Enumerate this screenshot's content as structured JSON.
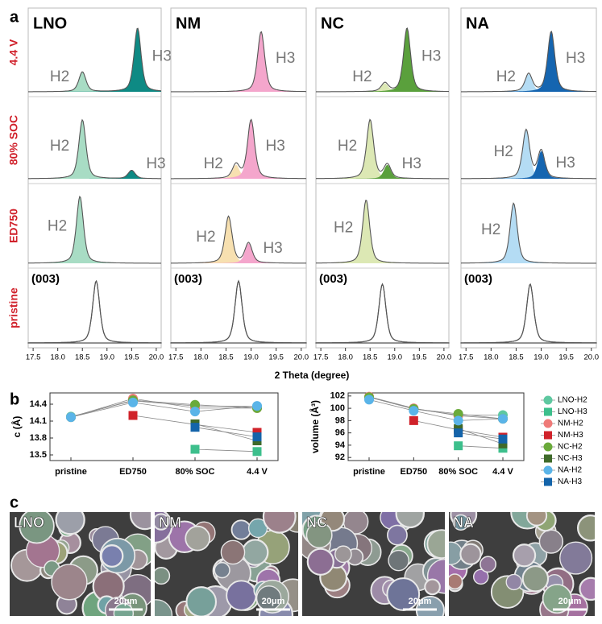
{
  "panel_labels": [
    "a",
    "b",
    "c"
  ],
  "chart_data": [
    {
      "type": "xrd",
      "xlabel": "2 Theta (degree)",
      "xlim": [
        17.4,
        20.1
      ],
      "xticks": [
        17.5,
        {
          "value": 18,
          "label": "18.0"
        },
        18.5,
        {
          "value": 19,
          "label": "19.0"
        },
        19.5,
        {
          "value": 20,
          "label": "20.0"
        }
      ],
      "rows": [
        "4.4 V",
        "80% SOC",
        "ED750",
        "pristine"
      ],
      "reflection": "(003)",
      "columns": [
        {
          "name": "LNO",
          "peaks": [
            [
              {
                "label": "H2",
                "color": "#a8dcc4",
                "center": 18.5,
                "intensity": 0.28
              },
              {
                "label": "H3",
                "color": "#0e8a84",
                "center": 19.62,
                "intensity": 0.9
              }
            ],
            [
              {
                "label": "H2",
                "color": "#a8dcc4",
                "center": 18.5,
                "intensity": 0.85
              },
              {
                "label": "H3",
                "color": "#0e8a84",
                "center": 19.5,
                "intensity": 0.12
              }
            ],
            [
              {
                "label": "H2",
                "color": "#a8dcc4",
                "center": 18.45,
                "intensity": 1.0
              }
            ],
            [
              {
                "center": 18.78,
                "intensity": 1.0
              }
            ]
          ]
        },
        {
          "name": "NM",
          "peaks": [
            [
              {
                "label": "H3",
                "color": "#f4a6cc",
                "center": 19.2,
                "intensity": 0.85
              }
            ],
            [
              {
                "label": "H2",
                "color": "#f7e0b0",
                "center": 18.7,
                "intensity": 0.2
              },
              {
                "label": "H3",
                "color": "#f4a6cc",
                "center": 19.0,
                "intensity": 0.85
              }
            ],
            [
              {
                "label": "H2",
                "color": "#f7e0b0",
                "center": 18.55,
                "intensity": 0.7
              },
              {
                "label": "H3",
                "color": "#f4a6cc",
                "center": 18.95,
                "intensity": 0.3
              }
            ],
            [
              {
                "center": 18.75,
                "intensity": 1.0
              }
            ]
          ]
        },
        {
          "name": "NC",
          "peaks": [
            [
              {
                "label": "H2",
                "color": "#dce8b4",
                "center": 18.8,
                "intensity": 0.12
              },
              {
                "label": "H3",
                "color": "#5aa03c",
                "center": 19.25,
                "intensity": 0.9
              }
            ],
            [
              {
                "label": "H2",
                "color": "#dce8b4",
                "center": 18.5,
                "intensity": 0.85
              },
              {
                "label": "H3",
                "color": "#5aa03c",
                "center": 18.85,
                "intensity": 0.2
              }
            ],
            [
              {
                "label": "H2",
                "color": "#dce8b4",
                "center": 18.42,
                "intensity": 0.95
              }
            ],
            [
              {
                "center": 18.75,
                "intensity": 0.95
              }
            ]
          ]
        },
        {
          "name": "NA",
          "peaks": [
            [
              {
                "label": "H2",
                "color": "#b4dcf4",
                "center": 18.75,
                "intensity": 0.25
              },
              {
                "label": "H3",
                "color": "#1565b0",
                "center": 19.2,
                "intensity": 0.85
              }
            ],
            [
              {
                "label": "H2",
                "color": "#b4dcf4",
                "center": 18.7,
                "intensity": 0.7
              },
              {
                "label": "H3",
                "color": "#1565b0",
                "center": 19.0,
                "intensity": 0.4
              }
            ],
            [
              {
                "label": "H2",
                "color": "#b4dcf4",
                "center": 18.45,
                "intensity": 0.9
              }
            ],
            [
              {
                "center": 18.78,
                "intensity": 0.95
              }
            ]
          ]
        }
      ]
    },
    {
      "type": "line",
      "ylabel": "c (Å)",
      "categories": [
        "pristine",
        "ED750",
        "80% SOC",
        "4.4 V"
      ],
      "ylim": [
        13.4,
        14.6
      ],
      "yticks": [
        13.5,
        13.8,
        14.1,
        14.4
      ],
      "series": [
        {
          "name": "LNO-H2",
          "color": "#5ec8a0",
          "marker": "circle",
          "values": [
            14.18,
            14.46,
            14.37,
            14.36
          ]
        },
        {
          "name": "LNO-H3",
          "color": "#3dbf8c",
          "marker": "square",
          "values": [
            null,
            null,
            13.6,
            13.56
          ]
        },
        {
          "name": "NM-H2",
          "color": "#ef7a78",
          "marker": "circle",
          "values": [
            14.17,
            14.5,
            14.33,
            14.33
          ]
        },
        {
          "name": "NM-H3",
          "color": "#d0222a",
          "marker": "square",
          "values": [
            null,
            14.2,
            14.04,
            13.9
          ]
        },
        {
          "name": "NC-H2",
          "color": "#6aaa3a",
          "marker": "circle",
          "values": [
            14.17,
            14.47,
            14.39,
            14.33
          ]
        },
        {
          "name": "NC-H3",
          "color": "#3f6a2a",
          "marker": "square",
          "values": [
            null,
            null,
            14.05,
            13.75
          ]
        },
        {
          "name": "NA-H2",
          "color": "#5ab4e8",
          "marker": "circle",
          "values": [
            14.17,
            14.43,
            14.27,
            14.37
          ]
        },
        {
          "name": "NA-H3",
          "color": "#1464aa",
          "marker": "square",
          "values": [
            null,
            null,
            13.99,
            13.82
          ]
        }
      ]
    },
    {
      "type": "line",
      "ylabel": "volume (Å³)",
      "categories": [
        "pristine",
        "ED750",
        "80% SOC",
        "4.4 V"
      ],
      "ylim": [
        91.5,
        102.5
      ],
      "yticks": [
        92,
        94,
        96,
        98,
        100,
        102
      ],
      "legend": "right",
      "series": [
        {
          "name": "LNO-H2",
          "color": "#5ec8a0",
          "marker": "circle",
          "values": [
            101.8,
            99.9,
            98.9,
            98.9
          ]
        },
        {
          "name": "LNO-H3",
          "color": "#3dbf8c",
          "marker": "square",
          "values": [
            null,
            null,
            93.9,
            93.5
          ]
        },
        {
          "name": "NM-H2",
          "color": "#ef7a78",
          "marker": "circle",
          "values": [
            101.9,
            100,
            98.8,
            98.3
          ]
        },
        {
          "name": "NM-H3",
          "color": "#d0222a",
          "marker": "square",
          "values": [
            null,
            98,
            96.5,
            95.3
          ]
        },
        {
          "name": "NC-H2",
          "color": "#6aaa3a",
          "marker": "circle",
          "values": [
            101.8,
            99.9,
            99.1,
            98.3
          ]
        },
        {
          "name": "NC-H3",
          "color": "#3f6a2a",
          "marker": "square",
          "values": [
            null,
            null,
            96.7,
            94.2
          ]
        },
        {
          "name": "NA-H2",
          "color": "#5ab4e8",
          "marker": "circle",
          "values": [
            101.4,
            99.6,
            98,
            98.3
          ]
        },
        {
          "name": "NA-H3",
          "color": "#1464aa",
          "marker": "square",
          "values": [
            null,
            null,
            96,
            95
          ]
        }
      ]
    }
  ],
  "sem_images": [
    {
      "label": "LNO",
      "scale_bar": "20μm"
    },
    {
      "label": "NM",
      "scale_bar": "20μm"
    },
    {
      "label": "NC",
      "scale_bar": "20μm"
    },
    {
      "label": "NA",
      "scale_bar": "20μm"
    }
  ]
}
